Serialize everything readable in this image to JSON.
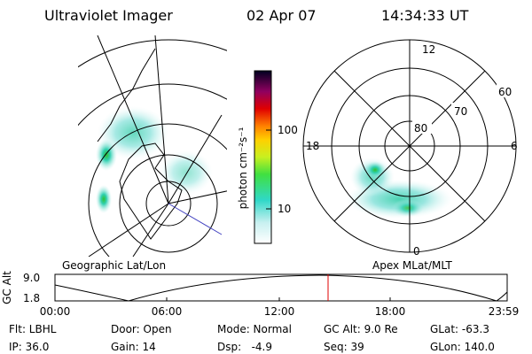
{
  "header": {
    "instrument": "Ultraviolet Imager",
    "date": "02 Apr 07",
    "time": "14:34:33 UT"
  },
  "colorbar": {
    "label": "photon cm⁻²s⁻¹",
    "ticks": [
      "100",
      "10"
    ]
  },
  "polar_plot": {
    "mlt_labels": [
      "12",
      "18",
      "6",
      "0"
    ],
    "mlat_labels": [
      "60",
      "70",
      "80"
    ]
  },
  "panel_labels": {
    "left": "Geographic Lat/Lon",
    "right": "Apex MLat/MLT"
  },
  "orbit_plot": {
    "y_label": "GC Alt",
    "y_ticks": [
      "9.0",
      "1.8"
    ],
    "x_ticks": [
      "00:00",
      "06:00",
      "12:00",
      "18:00",
      "23:59"
    ]
  },
  "footer": {
    "rows": [
      [
        "Flt: LBHL",
        "Door: Open",
        "Mode: Normal",
        "GC Alt: 9.0 Re",
        "GLat: -63.3"
      ],
      [
        "IP: 36.0",
        "Gain: 14",
        "Dsp:   -4.9",
        "Seq: 39",
        "GLon: 140.0"
      ]
    ]
  }
}
